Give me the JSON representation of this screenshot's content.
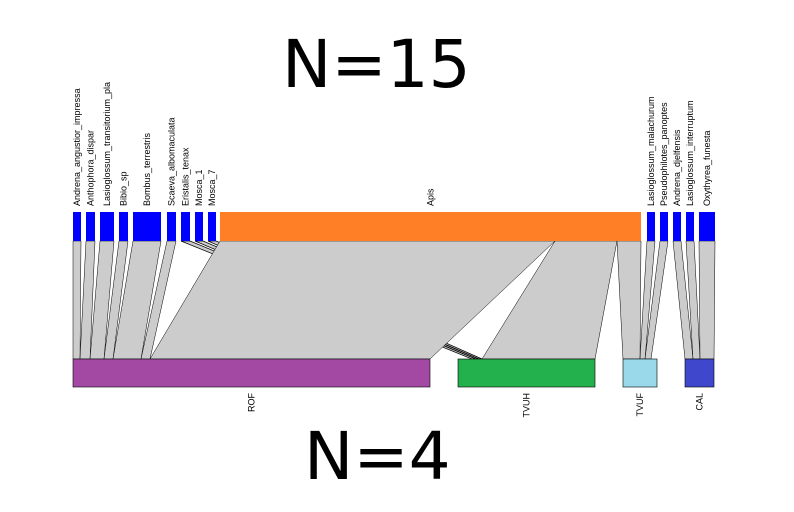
{
  "top_count_label": "N=15",
  "bottom_count_label": "N=4",
  "colors": {
    "pollinator_default": "#0000ff",
    "link_fill": "#cccccc",
    "link_stroke": "#000000"
  },
  "pollinators": [
    {
      "name": "Andrena_angustior_impressa"
    },
    {
      "name": "Anthophora_dispar"
    },
    {
      "name": "Lasioglossum_transitorium_pla"
    },
    {
      "name": "Bibio_sp"
    },
    {
      "name": "Bombus_terrestris"
    },
    {
      "name": "Scaeva_albomaculata"
    },
    {
      "name": "Eristalis_tenax"
    },
    {
      "name": "Mosca_1"
    },
    {
      "name": "Mosca_7"
    },
    {
      "name": "Apis",
      "color": "#ff7f27"
    },
    {
      "name": "Lasioglossum_malachurum"
    },
    {
      "name": "Pseudophilotes_panoptes"
    },
    {
      "name": "Andrena_djelfensis"
    },
    {
      "name": "Lasioglossum_interruptum"
    },
    {
      "name": "Oxythyrea_funesta"
    }
  ],
  "sites": [
    {
      "name": "ROF",
      "color": "#a349a4"
    },
    {
      "name": "TVUH",
      "color": "#22b14c"
    },
    {
      "name": "TVUF",
      "color": "#99d9ea"
    },
    {
      "name": "CAL",
      "color": "#3f48cc"
    }
  ]
}
